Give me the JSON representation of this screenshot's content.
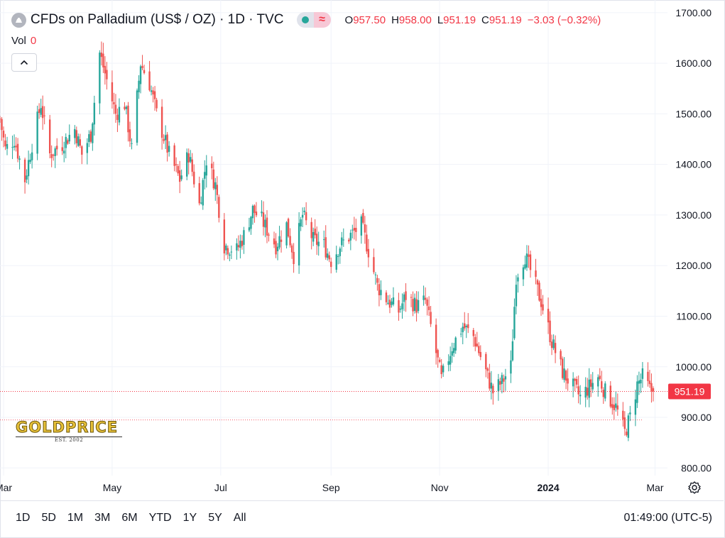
{
  "header": {
    "title": "CFDs on Palladium (US$ / OZ) · 1D · TVC",
    "ohlc": [
      {
        "label": "O",
        "value": "957.50"
      },
      {
        "label": "H",
        "value": "958.00"
      },
      {
        "label": "L",
        "value": "951.19"
      },
      {
        "label": "C",
        "value": "951.19"
      }
    ],
    "change": "−3.03 (−0.32%)",
    "vol_label": "Vol",
    "vol_value": "0"
  },
  "icons": {
    "symbol": "metal-symbol-icon",
    "status": "market-status-dot-icon",
    "wave": "wave-icon",
    "collapse": "chevron-up-icon",
    "settings": "settings-icon"
  },
  "logo": {
    "text": "GOLDPRICE",
    "est": "EST. 2002"
  },
  "colors": {
    "up": "#26a69a",
    "down": "#ef5350",
    "last_price": "#f23645",
    "grid": "#f0f3fa",
    "logo": "#e8c23a"
  },
  "bottom": {
    "ranges": [
      "1D",
      "5D",
      "1M",
      "3M",
      "6M",
      "YTD",
      "1Y",
      "5Y",
      "All"
    ],
    "time": "01:49:00 (UTC-5)"
  },
  "chart_data": {
    "type": "candlestick",
    "interval": "1D",
    "y_ticks": [
      "1700.00",
      "1600.00",
      "1500.00",
      "1400.00",
      "1300.00",
      "1200.00",
      "1100.00",
      "1000.00",
      "900.00",
      "800.00"
    ],
    "ylim": [
      785,
      1725
    ],
    "x_ticks": [
      {
        "label": "Mar",
        "date": "2023-03-01",
        "bold": false
      },
      {
        "label": "May",
        "date": "2023-05-01",
        "bold": false
      },
      {
        "label": "Jul",
        "date": "2023-07-01",
        "bold": false
      },
      {
        "label": "Sep",
        "date": "2023-09-01",
        "bold": false
      },
      {
        "label": "Nov",
        "date": "2023-11-01",
        "bold": false
      },
      {
        "label": "2024",
        "date": "2024-01-01",
        "bold": true
      },
      {
        "label": "Mar",
        "date": "2024-03-01",
        "bold": false
      }
    ],
    "xlim": [
      "2023-02-27",
      "2024-03-08"
    ],
    "last_price": 951.19,
    "last_price_label": "951.19",
    "reference_line": 895,
    "grid": true,
    "close_path": [
      [
        "2023-02-27",
        1490
      ],
      [
        "2023-03-02",
        1430
      ],
      [
        "2023-03-07",
        1450
      ],
      [
        "2023-03-13",
        1370
      ],
      [
        "2023-03-17",
        1440
      ],
      [
        "2023-03-22",
        1520
      ],
      [
        "2023-03-27",
        1420
      ],
      [
        "2023-04-03",
        1440
      ],
      [
        "2023-04-10",
        1470
      ],
      [
        "2023-04-14",
        1420
      ],
      [
        "2023-04-19",
        1460
      ],
      [
        "2023-04-24",
        1620
      ],
      [
        "2023-04-27",
        1580
      ],
      [
        "2023-05-03",
        1500
      ],
      [
        "2023-05-08",
        1520
      ],
      [
        "2023-05-12",
        1430
      ],
      [
        "2023-05-17",
        1600
      ],
      [
        "2023-05-22",
        1560
      ],
      [
        "2023-05-26",
        1500
      ],
      [
        "2023-06-02",
        1420
      ],
      [
        "2023-06-08",
        1370
      ],
      [
        "2023-06-13",
        1420
      ],
      [
        "2023-06-19",
        1320
      ],
      [
        "2023-06-23",
        1410
      ],
      [
        "2023-06-28",
        1360
      ],
      [
        "2023-07-03",
        1240
      ],
      [
        "2023-07-10",
        1230
      ],
      [
        "2023-07-14",
        1260
      ],
      [
        "2023-07-19",
        1310
      ],
      [
        "2023-07-24",
        1290
      ],
      [
        "2023-08-01",
        1240
      ],
      [
        "2023-08-07",
        1280
      ],
      [
        "2023-08-11",
        1220
      ],
      [
        "2023-08-16",
        1300
      ],
      [
        "2023-08-22",
        1250
      ],
      [
        "2023-08-28",
        1240
      ],
      [
        "2023-09-01",
        1210
      ],
      [
        "2023-09-06",
        1240
      ],
      [
        "2023-09-12",
        1260
      ],
      [
        "2023-09-18",
        1280
      ],
      [
        "2023-09-22",
        1230
      ],
      [
        "2023-09-27",
        1160
      ],
      [
        "2023-10-03",
        1130
      ],
      [
        "2023-10-09",
        1110
      ],
      [
        "2023-10-13",
        1140
      ],
      [
        "2023-10-19",
        1120
      ],
      [
        "2023-10-24",
        1130
      ],
      [
        "2023-10-27",
        1080
      ],
      [
        "2023-11-02",
        975
      ],
      [
        "2023-11-08",
        1040
      ],
      [
        "2023-11-14",
        1080
      ],
      [
        "2023-11-20",
        1060
      ],
      [
        "2023-11-27",
        990
      ],
      [
        "2023-12-01",
        950
      ],
      [
        "2023-12-06",
        970
      ],
      [
        "2023-12-11",
        1000
      ],
      [
        "2023-12-14",
        1180
      ],
      [
        "2023-12-19",
        1220
      ],
      [
        "2023-12-22",
        1190
      ],
      [
        "2023-12-28",
        1130
      ],
      [
        "2024-01-03",
        1050
      ],
      [
        "2024-01-09",
        990
      ],
      [
        "2024-01-15",
        960
      ],
      [
        "2024-01-19",
        940
      ],
      [
        "2024-01-24",
        960
      ],
      [
        "2024-01-29",
        980
      ],
      [
        "2024-02-02",
        950
      ],
      [
        "2024-02-08",
        920
      ],
      [
        "2024-02-13",
        870
      ],
      [
        "2024-02-16",
        900
      ],
      [
        "2024-02-20",
        965
      ],
      [
        "2024-02-23",
        980
      ],
      [
        "2024-02-27",
        955
      ],
      [
        "2024-02-29",
        951.19
      ]
    ]
  }
}
